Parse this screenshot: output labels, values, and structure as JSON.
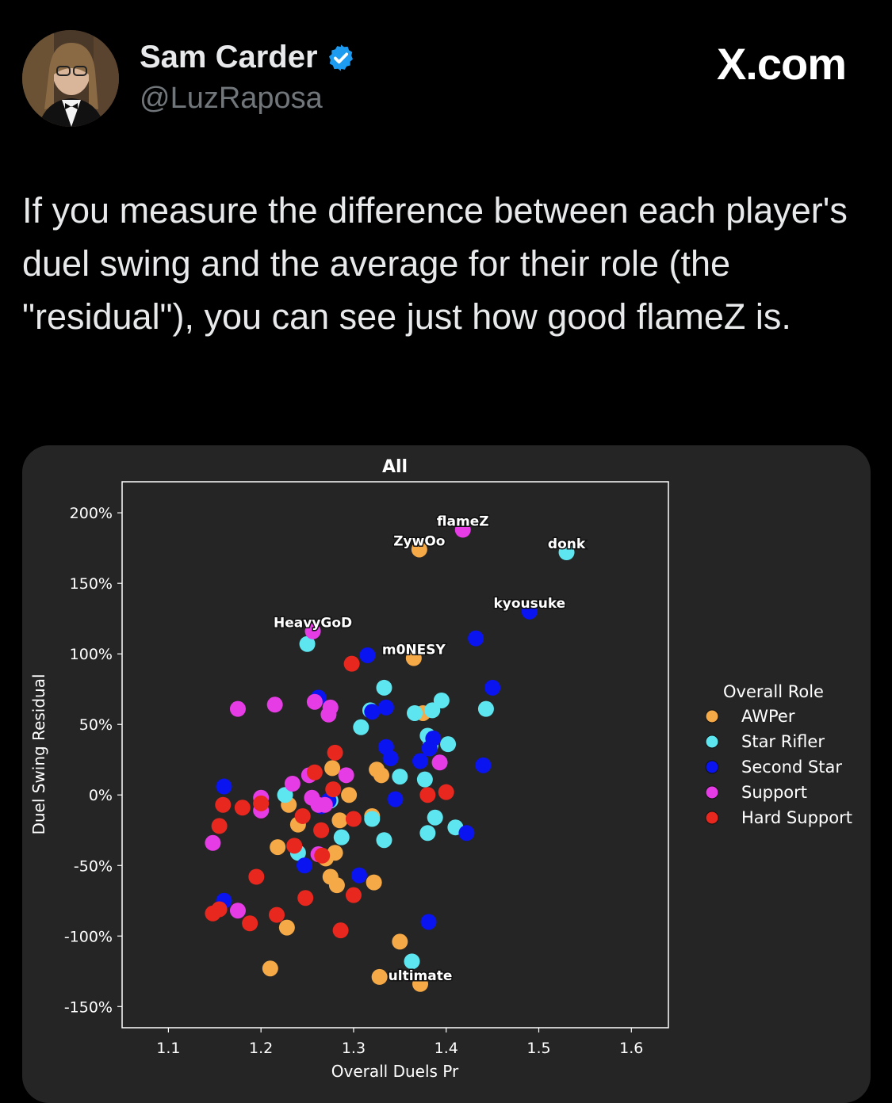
{
  "tweet": {
    "author_name": "Sam Carder",
    "author_handle": "@LuzRaposa",
    "verified_icon": "verified-badge-icon",
    "site_label": "X.com",
    "text": "If you measure the difference between each player's duel swing and the average for their role (the \"residual\"), you can see just how good flameZ is."
  },
  "colors": {
    "background": "#000000",
    "card": "#252525",
    "verified": "#1d9bf0",
    "AWPer": "#f5a947",
    "Star Rifler": "#5ee6f0",
    "Second Star": "#0a14f0",
    "Support": "#e63ce6",
    "Hard Support": "#e8281e"
  },
  "chart_data": {
    "type": "scatter",
    "title": "All",
    "xlabel": "Overall Duels Pr",
    "ylabel": "Duel Swing Residual",
    "xlim": [
      1.05,
      1.64
    ],
    "ylim": [
      -165,
      222
    ],
    "x_ticks": [
      "1.1",
      "1.2",
      "1.3",
      "1.4",
      "1.5",
      "1.6"
    ],
    "y_ticks": [
      "200%",
      "150%",
      "100%",
      "50%",
      "0%",
      "-50%",
      "-100%",
      "-150%"
    ],
    "grid": false,
    "legend": {
      "title": "Overall Role",
      "placement": "right",
      "entries": [
        "AWPer",
        "Star Rifler",
        "Second Star",
        "Support",
        "Hard Support"
      ]
    },
    "annotations": [
      {
        "text": "flameZ",
        "x": 1.418,
        "y": 188
      },
      {
        "text": "ZywOo",
        "x": 1.371,
        "y": 174
      },
      {
        "text": "donk",
        "x": 1.53,
        "y": 172
      },
      {
        "text": "kyousuke",
        "x": 1.49,
        "y": 130
      },
      {
        "text": "HeavyGoD",
        "x": 1.256,
        "y": 116
      },
      {
        "text": "m0NESY",
        "x": 1.365,
        "y": 97
      },
      {
        "text": "ultimate",
        "x": 1.372,
        "y": -134
      }
    ],
    "series": [
      {
        "name": "AWPer",
        "points": [
          [
            1.371,
            174
          ],
          [
            1.365,
            97
          ],
          [
            1.375,
            58
          ],
          [
            1.277,
            19
          ],
          [
            1.295,
            0
          ],
          [
            1.23,
            -7
          ],
          [
            1.24,
            -21
          ],
          [
            1.285,
            -18
          ],
          [
            1.32,
            -15
          ],
          [
            1.218,
            -37
          ],
          [
            1.27,
            -45
          ],
          [
            1.28,
            -41
          ],
          [
            1.275,
            -58
          ],
          [
            1.282,
            -64
          ],
          [
            1.322,
            -62
          ],
          [
            1.228,
            -94
          ],
          [
            1.21,
            -123
          ],
          [
            1.35,
            -104
          ],
          [
            1.328,
            -129
          ],
          [
            1.372,
            -134
          ],
          [
            1.325,
            18
          ],
          [
            1.33,
            14
          ]
        ]
      },
      {
        "name": "Star Rifler",
        "points": [
          [
            1.53,
            172
          ],
          [
            1.25,
            107
          ],
          [
            1.333,
            76
          ],
          [
            1.395,
            67
          ],
          [
            1.385,
            60
          ],
          [
            1.366,
            58
          ],
          [
            1.443,
            61
          ],
          [
            1.318,
            60
          ],
          [
            1.308,
            48
          ],
          [
            1.38,
            42
          ],
          [
            1.383,
            35
          ],
          [
            1.402,
            36
          ],
          [
            1.35,
            13
          ],
          [
            1.377,
            11
          ],
          [
            1.226,
            0
          ],
          [
            1.275,
            -4
          ],
          [
            1.32,
            -17
          ],
          [
            1.388,
            -16
          ],
          [
            1.41,
            -23
          ],
          [
            1.38,
            -27
          ],
          [
            1.287,
            -30
          ],
          [
            1.333,
            -32
          ],
          [
            1.24,
            -41
          ],
          [
            1.363,
            -118
          ]
        ]
      },
      {
        "name": "Second Star",
        "points": [
          [
            1.49,
            130
          ],
          [
            1.432,
            111
          ],
          [
            1.315,
            99
          ],
          [
            1.45,
            76
          ],
          [
            1.262,
            69
          ],
          [
            1.335,
            62
          ],
          [
            1.32,
            59
          ],
          [
            1.386,
            40
          ],
          [
            1.382,
            33
          ],
          [
            1.335,
            34
          ],
          [
            1.34,
            26
          ],
          [
            1.372,
            24
          ],
          [
            1.44,
            21
          ],
          [
            1.16,
            6
          ],
          [
            1.273,
            -4
          ],
          [
            1.345,
            -3
          ],
          [
            1.265,
            -8
          ],
          [
            1.422,
            -27
          ],
          [
            1.247,
            -50
          ],
          [
            1.306,
            -57
          ],
          [
            1.16,
            -75
          ],
          [
            1.381,
            -90
          ]
        ]
      },
      {
        "name": "Support",
        "points": [
          [
            1.418,
            188
          ],
          [
            1.256,
            116
          ],
          [
            1.175,
            61
          ],
          [
            1.215,
            64
          ],
          [
            1.258,
            66
          ],
          [
            1.275,
            62
          ],
          [
            1.273,
            57
          ],
          [
            1.393,
            23
          ],
          [
            1.292,
            14
          ],
          [
            1.252,
            14
          ],
          [
            1.234,
            8
          ],
          [
            1.2,
            -2
          ],
          [
            1.255,
            -2
          ],
          [
            1.262,
            -7
          ],
          [
            1.269,
            -7
          ],
          [
            1.2,
            -11
          ],
          [
            1.148,
            -34
          ],
          [
            1.262,
            -42
          ],
          [
            1.175,
            -82
          ]
        ]
      },
      {
        "name": "Hard Support",
        "points": [
          [
            1.298,
            93
          ],
          [
            1.28,
            30
          ],
          [
            1.258,
            16
          ],
          [
            1.278,
            4
          ],
          [
            1.38,
            0
          ],
          [
            1.4,
            2
          ],
          [
            1.159,
            -7
          ],
          [
            1.18,
            -9
          ],
          [
            1.2,
            -6
          ],
          [
            1.3,
            -17
          ],
          [
            1.245,
            -15
          ],
          [
            1.155,
            -22
          ],
          [
            1.265,
            -25
          ],
          [
            1.236,
            -36
          ],
          [
            1.266,
            -43
          ],
          [
            1.195,
            -58
          ],
          [
            1.248,
            -73
          ],
          [
            1.3,
            -71
          ],
          [
            1.148,
            -84
          ],
          [
            1.155,
            -81
          ],
          [
            1.217,
            -85
          ],
          [
            1.188,
            -91
          ],
          [
            1.286,
            -96
          ]
        ]
      }
    ]
  }
}
